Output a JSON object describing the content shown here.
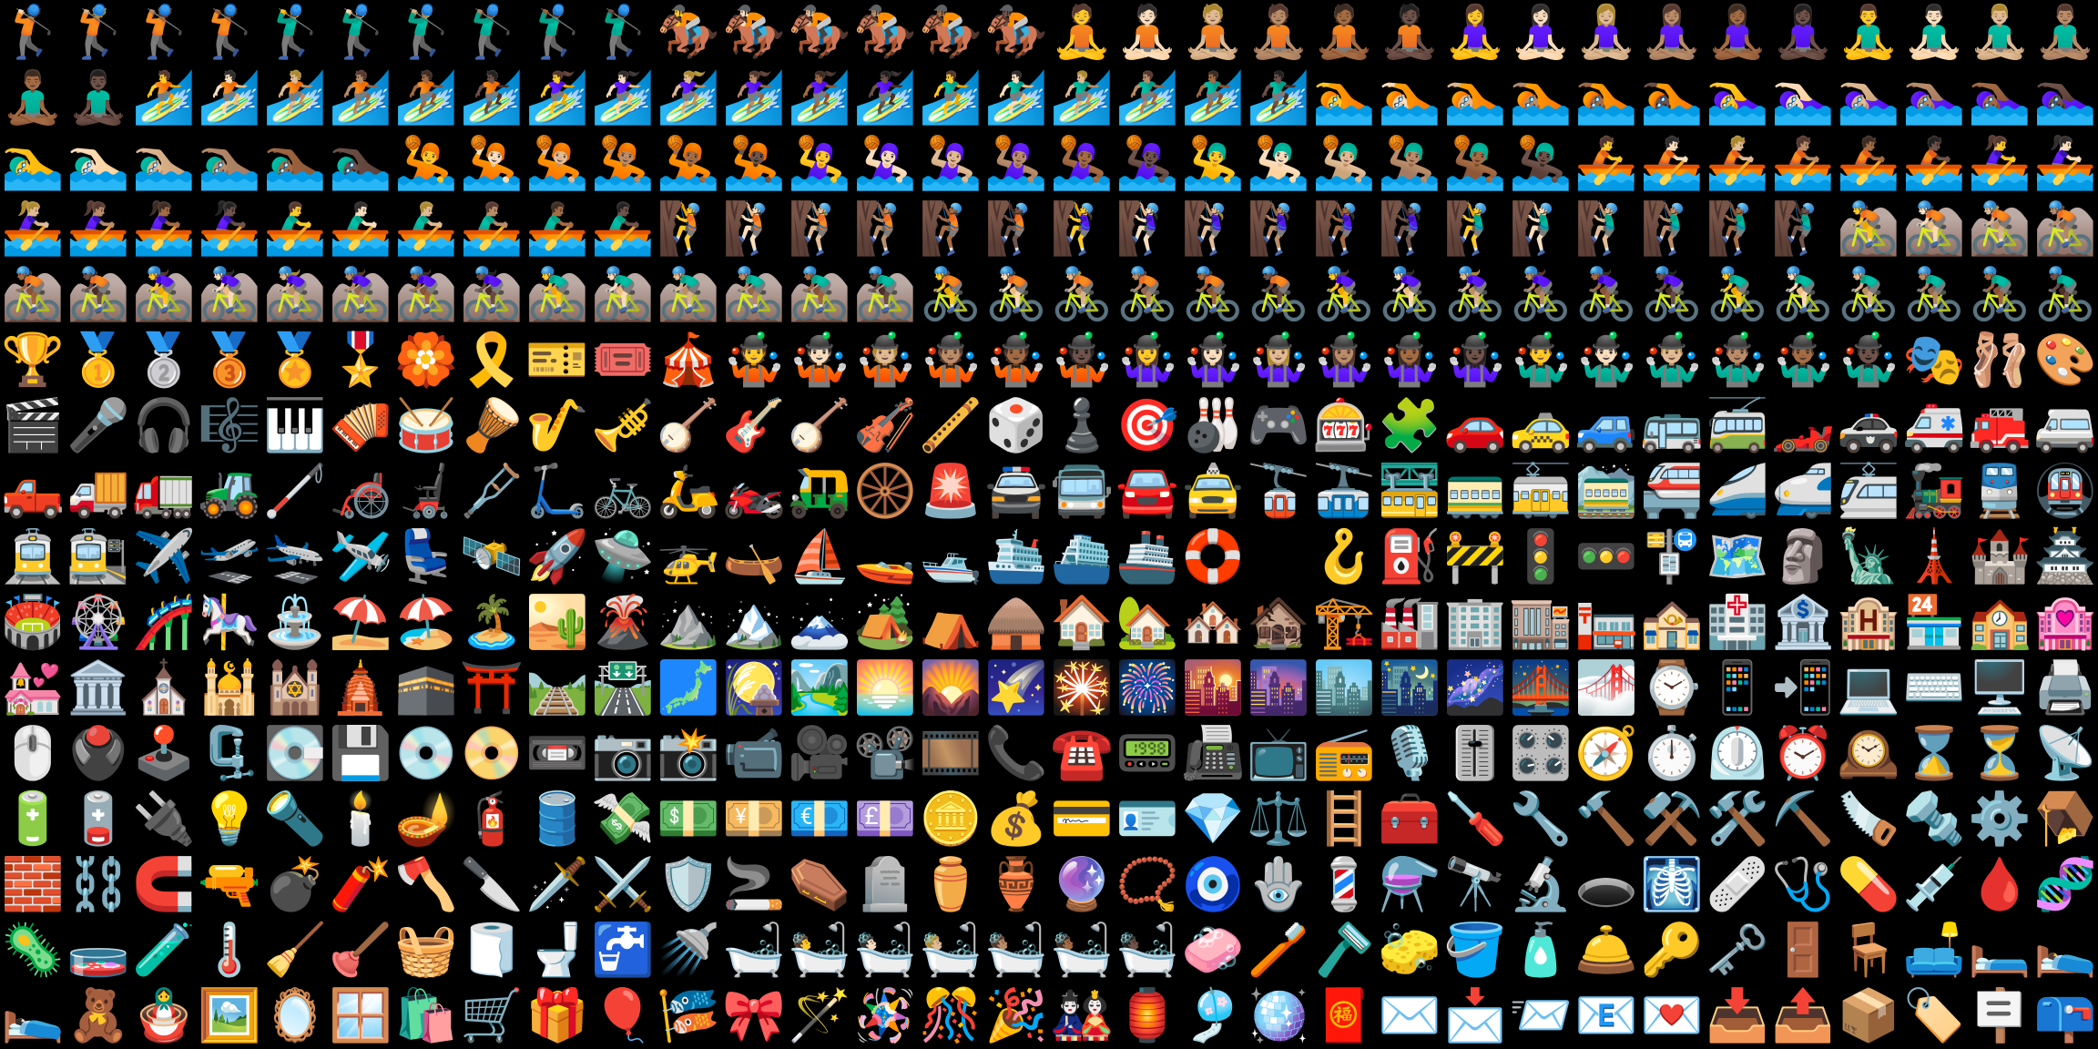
{
  "sheet": {
    "rows": [
      [
        "🏌🏻",
        "🏌🏼",
        "🏌🏽",
        "🏌🏾",
        "🏌️‍♂️",
        "🏌🏻‍♂️",
        "🏌🏼‍♂️",
        "🏌🏽‍♂️",
        "🏌🏾‍♂️",
        "🏌🏿‍♂️",
        "🏇",
        "🏇🏻",
        "🏇🏼",
        "🏇🏽",
        "🏇🏾",
        "🏇🏿",
        "🧘",
        "🧘🏻",
        "🧘🏼",
        "🧘🏽",
        "🧘🏾",
        "🧘🏿",
        "🧘‍♀️",
        "🧘🏻‍♀️",
        "🧘🏼‍♀️",
        "🧘🏽‍♀️",
        "🧘🏾‍♀️",
        "🧘🏿‍♀️",
        "🧘‍♂️",
        "🧘🏻‍♂️",
        "🧘🏼‍♂️",
        "🧘🏽‍♂️"
      ],
      [
        "🧘🏾‍♂️",
        "🧘🏿‍♂️",
        "🏄",
        "🏄🏻",
        "🏄🏼",
        "🏄🏽",
        "🏄🏾",
        "🏄🏿",
        "🏄‍♀️",
        "🏄🏻‍♀️",
        "🏄🏼‍♀️",
        "🏄🏽‍♀️",
        "🏄🏾‍♀️",
        "🏄🏿‍♀️",
        "🏄‍♂️",
        "🏄🏻‍♂️",
        "🏄🏼‍♂️",
        "🏄🏽‍♂️",
        "🏄🏾‍♂️",
        "🏄🏿‍♂️",
        "🏊",
        "🏊🏻",
        "🏊🏼",
        "🏊🏽",
        "🏊🏾",
        "🏊🏿",
        "🏊‍♀️",
        "🏊🏻‍♀️",
        "🏊🏼‍♀️",
        "🏊🏽‍♀️",
        "🏊🏾‍♀️",
        "🏊🏿‍♀️"
      ],
      [
        "🏊‍♂️",
        "🏊🏻‍♂️",
        "🏊🏼‍♂️",
        "🏊🏽‍♂️",
        "🏊🏾‍♂️",
        "🏊🏿‍♂️",
        "🤽",
        "🤽🏻",
        "🤽🏼",
        "🤽🏽",
        "🤽🏾",
        "🤽🏿",
        "🤽‍♀️",
        "🤽🏻‍♀️",
        "🤽🏼‍♀️",
        "🤽🏽‍♀️",
        "🤽🏾‍♀️",
        "🤽🏿‍♀️",
        "🤽‍♂️",
        "🤽🏻‍♂️",
        "🤽🏼‍♂️",
        "🤽🏽‍♂️",
        "🤽🏾‍♂️",
        "🤽🏿‍♂️",
        "🚣",
        "🚣🏻",
        "🚣🏼",
        "🚣🏽",
        "🚣🏾",
        "🚣🏿",
        "🚣‍♀️",
        "🚣🏻‍♀️"
      ],
      [
        "🚣🏼‍♀️",
        "🚣🏽‍♀️",
        "🚣🏾‍♀️",
        "🚣🏿‍♀️",
        "🚣‍♂️",
        "🚣🏻‍♂️",
        "🚣🏼‍♂️",
        "🚣🏽‍♂️",
        "🚣🏾‍♂️",
        "🚣🏿‍♂️",
        "🧗",
        "🧗🏻",
        "🧗🏼",
        "🧗🏽",
        "🧗🏾",
        "🧗🏿",
        "🧗‍♀️",
        "🧗🏻‍♀️",
        "🧗🏼‍♀️",
        "🧗🏽‍♀️",
        "🧗🏾‍♀️",
        "🧗🏿‍♀️",
        "🧗‍♂️",
        "🧗🏻‍♂️",
        "🧗🏼‍♂️",
        "🧗🏽‍♂️",
        "🧗🏾‍♂️",
        "🧗🏿‍♂️",
        "🚵",
        "🚵🏻",
        "🚵🏼",
        "🚵🏽"
      ],
      [
        "🚵🏾",
        "🚵🏿",
        "🚵‍♀️",
        "🚵🏻‍♀️",
        "🚵🏼‍♀️",
        "🚵🏽‍♀️",
        "🚵🏾‍♀️",
        "🚵🏿‍♀️",
        "🚵‍♂️",
        "🚵🏻‍♂️",
        "🚵🏼‍♂️",
        "🚵🏽‍♂️",
        "🚵🏾‍♂️",
        "🚵🏿‍♂️",
        "🚴",
        "🚴🏻",
        "🚴🏼",
        "🚴🏽",
        "🚴🏾",
        "🚴🏿",
        "🚴‍♀️",
        "🚴🏻‍♀️",
        "🚴🏼‍♀️",
        "🚴🏽‍♀️",
        "🚴🏾‍♀️",
        "🚴🏿‍♀️",
        "🚴‍♂️",
        "🚴🏻‍♂️",
        "🚴🏼‍♂️",
        "🚴🏽‍♂️",
        "🚴🏾‍♂️",
        "🚴🏿‍♂️"
      ],
      [
        "🏆",
        "🥇",
        "🥈",
        "🥉",
        "🏅",
        "🎖️",
        "🏵️",
        "🎗️",
        "🎫",
        "🎟️",
        "🎪",
        "🤹",
        "🤹🏻",
        "🤹🏼",
        "🤹🏽",
        "🤹🏾",
        "🤹🏿",
        "🤹‍♀️",
        "🤹🏻‍♀️",
        "🤹🏼‍♀️",
        "🤹🏽‍♀️",
        "🤹🏾‍♀️",
        "🤹🏿‍♀️",
        "🤹‍♂️",
        "🤹🏻‍♂️",
        "🤹🏼‍♂️",
        "🤹🏽‍♂️",
        "🤹🏾‍♂️",
        "🤹🏿‍♂️",
        "🎭",
        "🩰",
        "🎨"
      ],
      [
        "🎬",
        "🎤",
        "🎧",
        "🎼",
        "🎹",
        "🪗",
        "🥁",
        "🪘",
        "🎷",
        "🎺",
        "🪕",
        "🎸",
        "🪕",
        "🎻",
        "🪈",
        "🎲",
        "♟️",
        "🎯",
        "🎳",
        "🎮",
        "🎰",
        "🧩",
        "🚗",
        "🚕",
        "🚙",
        "🚌",
        "🚎",
        "🏎️",
        "🚓",
        "🚑",
        "🚒",
        "🚐"
      ],
      [
        "🛻",
        "🚚",
        "🚛",
        "🚜",
        "🦯",
        "🦽",
        "🦼",
        "🩼",
        "🛴",
        "🚲",
        "🛵",
        "🏍️",
        "🛺",
        "🛞",
        "🚨",
        "🚔",
        "🚍",
        "🚘",
        "🚖",
        "🚡",
        "🚠",
        "🚟",
        "🚃",
        "🚋",
        "🚞",
        "🚝",
        "🚄",
        "🚅",
        "🚈",
        "🚂",
        "🚆",
        "🚇"
      ],
      [
        "🚊",
        "🚉",
        "✈️",
        "🛫",
        "🛬",
        "🛩️",
        "💺",
        "🛰️",
        "🚀",
        "🛸",
        "🚁",
        "🛶",
        "⛵",
        "🚤",
        "🛥️",
        "🛳️",
        "⛴️",
        "🚢",
        "🛟",
        "⚓",
        "🪝",
        "⛽",
        "🚧",
        "🚦",
        "🚥",
        "🚏",
        "🗺️",
        "🗿",
        "🗽",
        "🗼",
        "🏰",
        "🏯"
      ],
      [
        "🏟️",
        "🎡",
        "🎢",
        "🎠",
        "⛲",
        "⛱️",
        "🏖️",
        "🏝️",
        "🏜️",
        "🌋",
        "⛰️",
        "🏔️",
        "🗻",
        "🏕️",
        "⛺",
        "🛖",
        "🏠",
        "🏡",
        "🏘️",
        "🏚️",
        "🏗️",
        "🏭",
        "🏢",
        "🏬",
        "🏣",
        "🏤",
        "🏥",
        "🏦",
        "🏨",
        "🏪",
        "🏫",
        "🏩"
      ],
      [
        "💒",
        "🏛️",
        "⛪",
        "🕌",
        "🕍",
        "🛕",
        "🕋",
        "⛩️",
        "🛤️",
        "🛣️",
        "🗾",
        "🎑",
        "🏞️",
        "🌅",
        "🌄",
        "🌠",
        "🎇",
        "🎆",
        "🌇",
        "🌆",
        "🏙️",
        "🌃",
        "🌌",
        "🌉",
        "🌁",
        "⌚",
        "📱",
        "📲",
        "💻",
        "⌨️",
        "🖥️",
        "🖨️"
      ],
      [
        "🖱️",
        "🖲️",
        "🕹️",
        "🗜️",
        "💽",
        "💾",
        "💿",
        "📀",
        "📼",
        "📷",
        "📸",
        "📹",
        "🎥",
        "📽️",
        "🎞️",
        "📞",
        "☎️",
        "📟",
        "📠",
        "📺",
        "📻",
        "🎙️",
        "🎚️",
        "🎛️",
        "🧭",
        "⏱️",
        "⏲️",
        "⏰",
        "🕰️",
        "⌛",
        "⏳",
        "📡"
      ],
      [
        "🔋",
        "🪫",
        "🔌",
        "💡",
        "🔦",
        "🕯️",
        "🪔",
        "🧯",
        "🛢️",
        "💸",
        "💵",
        "💴",
        "💶",
        "💷",
        "🪙",
        "💰",
        "💳",
        "🪪",
        "💎",
        "⚖️",
        "🪜",
        "🧰",
        "🪛",
        "🔧",
        "🔨",
        "⚒️",
        "🛠️",
        "⛏️",
        "🪚",
        "🔩",
        "⚙️",
        "🪤"
      ],
      [
        "🧱",
        "⛓️",
        "🧲",
        "🔫",
        "💣",
        "🧨",
        "🪓",
        "🔪",
        "🗡️",
        "⚔️",
        "🛡️",
        "🚬",
        "⚰️",
        "🪦",
        "⚱️",
        "🏺",
        "🔮",
        "📿",
        "🧿",
        "🪬",
        "💈",
        "⚗️",
        "🔭",
        "🔬",
        "🕳️",
        "🩻",
        "🩹",
        "🩺",
        "💊",
        "💉",
        "🩸",
        "🧬"
      ],
      [
        "🦠",
        "🧫",
        "🧪",
        "🌡️",
        "🧹",
        "🪠",
        "🧺",
        "🧻",
        "🚽",
        "🚰",
        "🚿",
        "🛁",
        "🛀",
        "🛀🏻",
        "🛀🏼",
        "🛀🏽",
        "🛀🏾",
        "🛀🏿",
        "🧼",
        "🪥",
        "🪒",
        "🧽",
        "🪣",
        "🧴",
        "🛎️",
        "🔑",
        "🗝️",
        "🚪",
        "🪑",
        "🛋️",
        "🛏️",
        "🛌"
      ],
      [
        "🛌🏻",
        "🧸",
        "🪆",
        "🖼️",
        "🪞",
        "🪟",
        "🛍️",
        "🛒",
        "🎁",
        "🎈",
        "🎏",
        "🎀",
        "🪄",
        "🪅",
        "🎊",
        "🎉",
        "🎎",
        "🏮",
        "🎐",
        "🪩",
        "🧧",
        "✉️",
        "📩",
        "📨",
        "📧",
        "💌",
        "📥",
        "📤",
        "📦",
        "🏷️",
        "🪧",
        "📪"
      ]
    ]
  }
}
